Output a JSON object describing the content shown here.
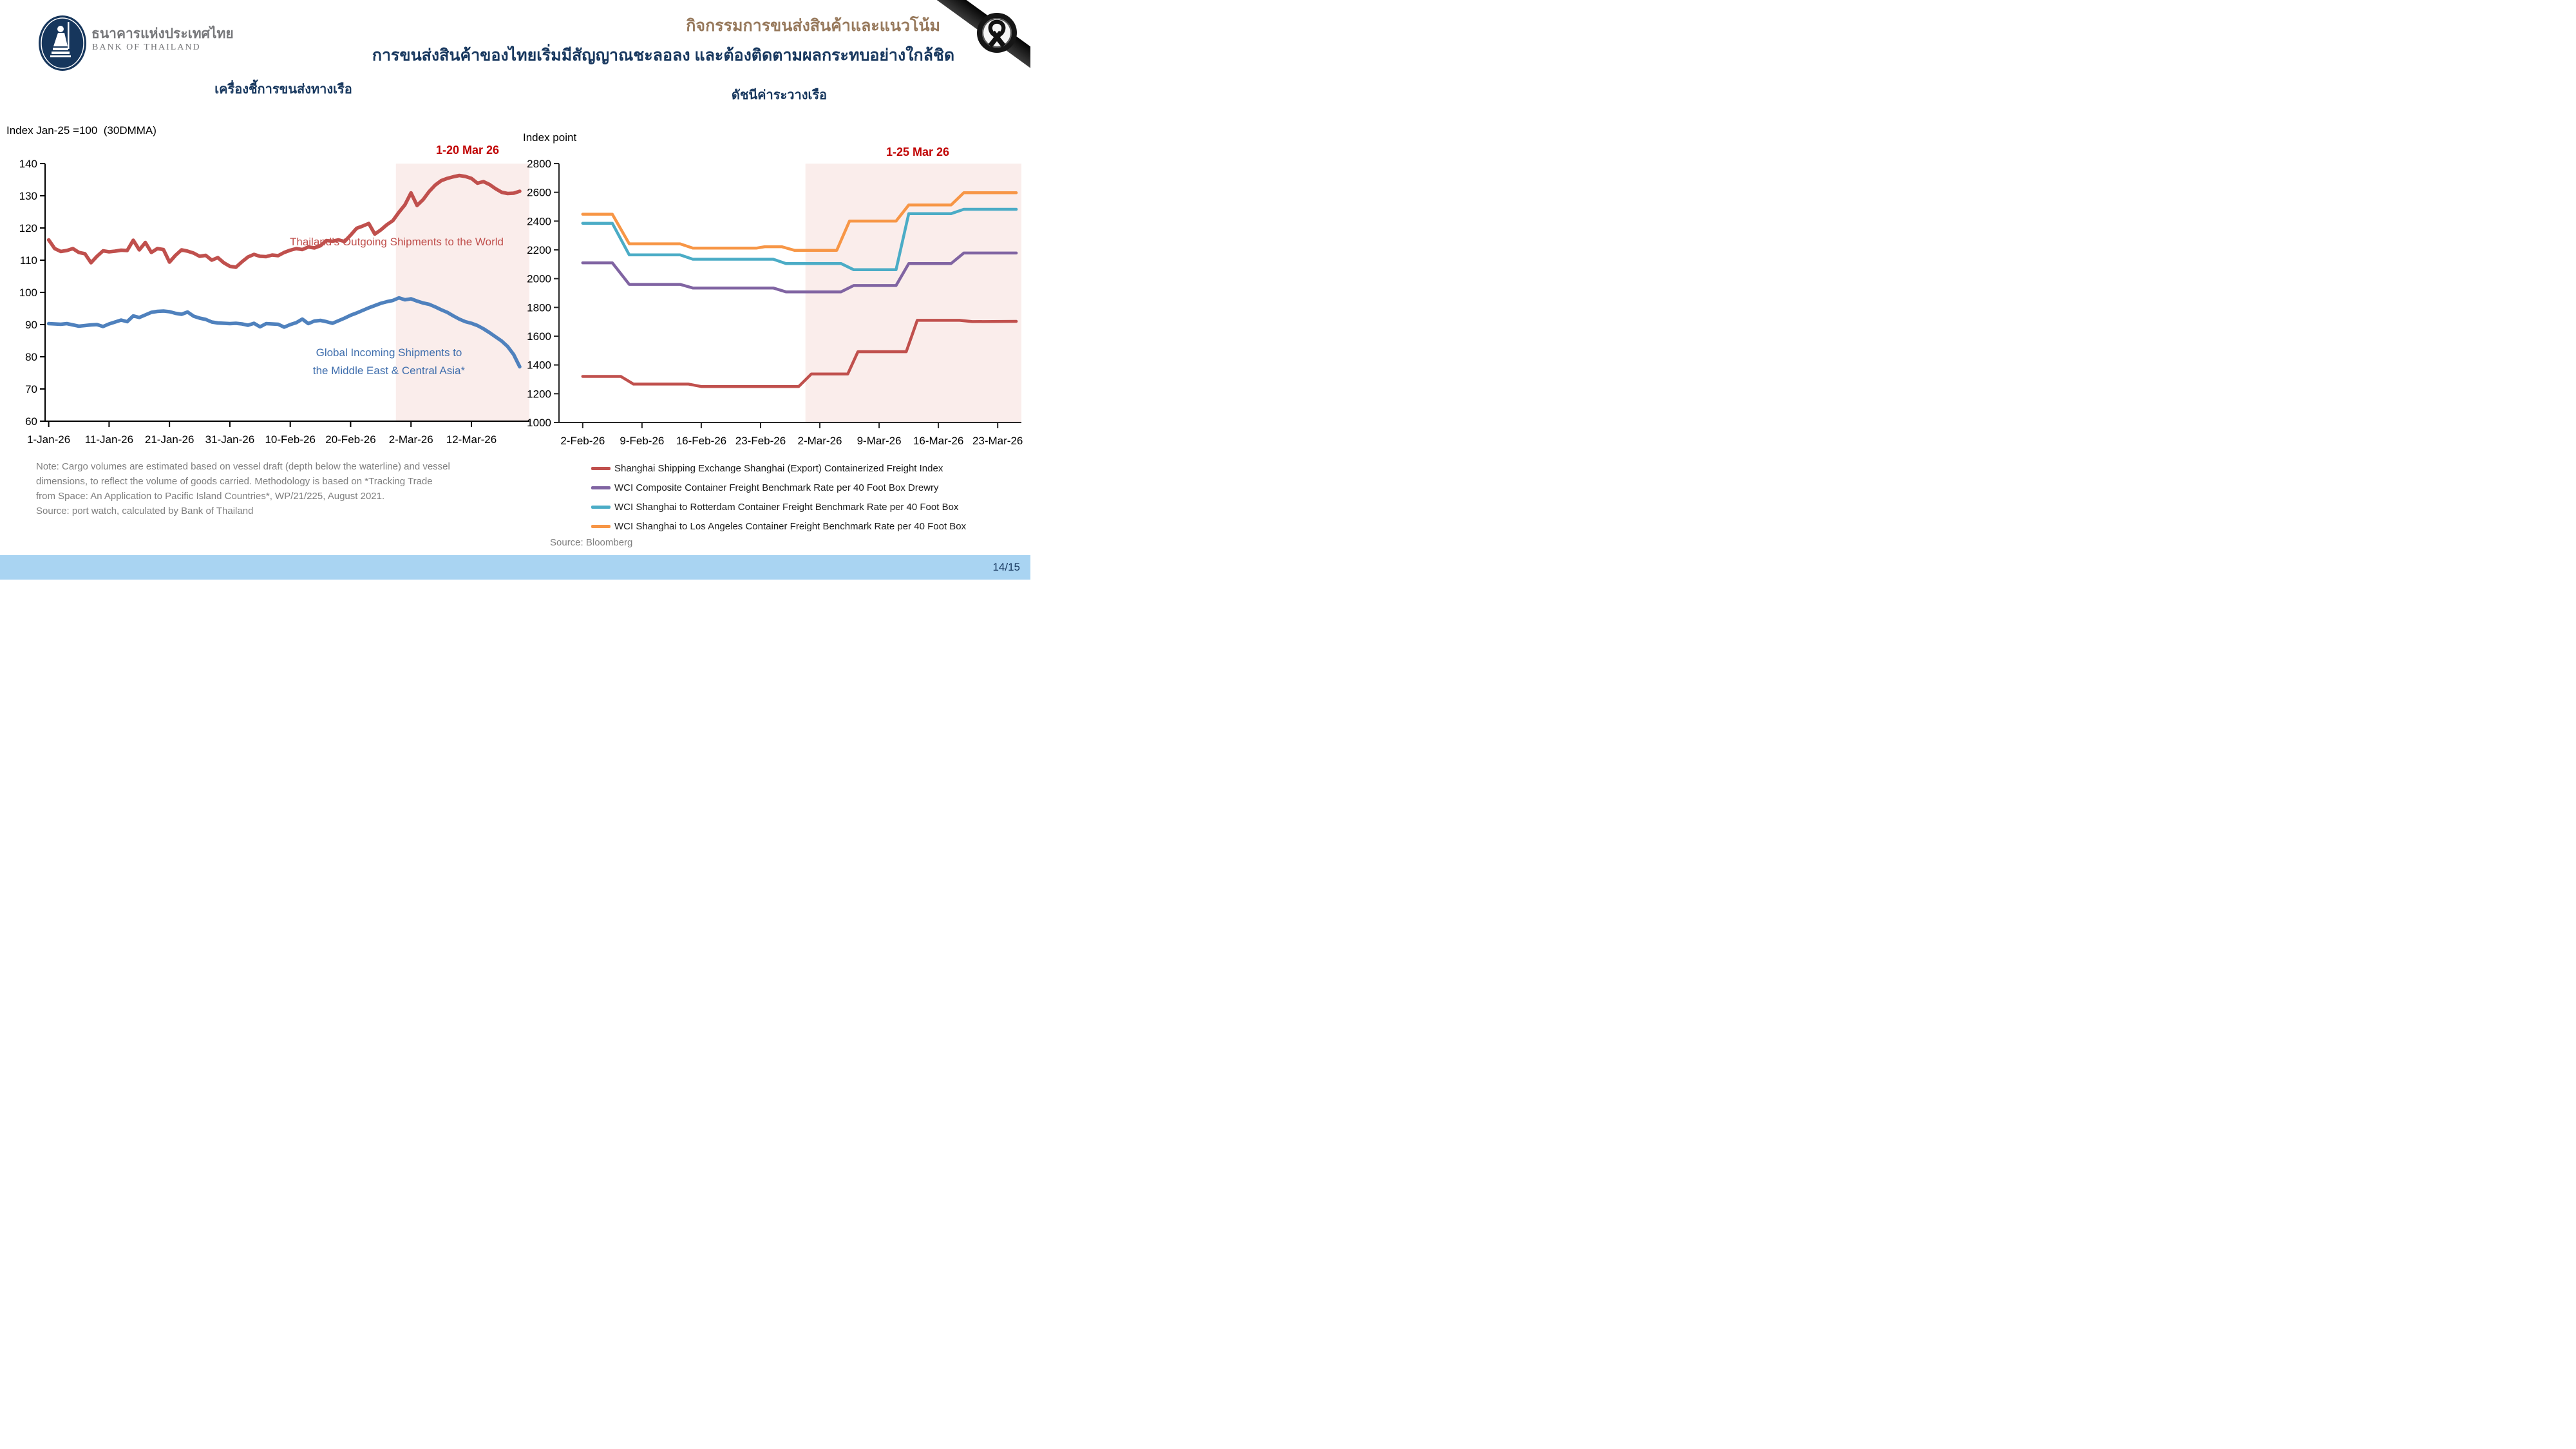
{
  "header": {
    "logo": {
      "org_thai": "ธนาคารแห่งประเทศไทย",
      "org_en": "BANK OF THAILAND",
      "emblem_icon": "bank-of-thailand-emblem"
    },
    "title_line1": "กิจกรรมการขนส่งสินค้าและแนวโน้ม",
    "title_line2": "การขนส่งสินค้าของไทยเริ่มมีสัญญาณชะลอลง และต้องติดตามผลกระทบอย่างใกล้ชิด",
    "mourning_ribbon_icon": "black-mourning-ribbon"
  },
  "left_panel": {
    "subtitle": "เครื่องชี้การขนส่งทางเรือ",
    "y_axis_label": "Index Jan-25 =100  (30DMMA)",
    "highlight_label": "1-20 Mar 26",
    "series_label_red": "Thailand’s Outgoing Shipments to the World",
    "series_label_blue_line1": "Global Incoming Shipments to",
    "series_label_blue_line2": "the Middle East & Central Asia*",
    "note_line1": "Note: Cargo volumes are estimated based on vessel draft (depth below the waterline) and vessel",
    "note_line2": "dimensions, to reflect the volume of goods carried. Methodology is based on *Tracking Trade",
    "note_line3": "from Space: An Application to Pacific Island Countries*, WP/21/225, August 2021.",
    "note_line4": "Source: port watch, calculated by Bank of Thailand"
  },
  "right_panel": {
    "subtitle": "ดัชนีค่าระวางเรือ",
    "y_axis_label": "Index point",
    "highlight_label": "1-25 Mar 26",
    "legend": [
      {
        "label": "Shanghai Shipping Exchange Shanghai (Export) Containerized Freight Index",
        "color": "#C0504D"
      },
      {
        "label": "WCI Composite Container Freight Benchmark Rate per 40 Foot Box Drewry",
        "color": "#8064A2"
      },
      {
        "label": "WCI Shanghai to Rotterdam Container Freight Benchmark Rate per 40 Foot Box",
        "color": "#4BACC6"
      },
      {
        "label": "WCI Shanghai to Los Angeles Container Freight Benchmark Rate per 40 Foot Box",
        "color": "#F79646"
      }
    ],
    "source": "Source: Bloomberg"
  },
  "footer": {
    "page_number": "14/15",
    "bar_color": "#A9D4F2"
  },
  "colors": {
    "title_brown": "#97795C",
    "title_navy": "#17375E",
    "annotation_red": "#C00000",
    "highlight_band": "#FAEDEB",
    "red_line": "#C0504D",
    "blue_line": "#4F81BD",
    "purple_line": "#8064A2",
    "teal_line": "#4BACC6",
    "orange_line": "#F79646",
    "note_gray": "#7F7F7F",
    "footer_blue": "#A9D4F2"
  },
  "chart_data": [
    {
      "type": "line",
      "title": "เครื่องชี้การขนส่งทางเรือ",
      "ylabel": "Index Jan-25 =100  (30DMMA)",
      "ylim": [
        60,
        140
      ],
      "ytick_step": 10,
      "grid": false,
      "x_axis_min_day": -0.6,
      "x_axis_max_day": 79.6,
      "x_tick_days": [
        0,
        10,
        20,
        30,
        40,
        50,
        60,
        70
      ],
      "x_tick_labels": [
        "1-Jan-26",
        "11-Jan-26",
        "21-Jan-26",
        "31-Jan-26",
        "10-Feb-26",
        "20-Feb-26",
        "2-Mar-26",
        "12-Mar-26"
      ],
      "highlight": {
        "label": "1-20 Mar 26",
        "start_day": 57.5,
        "end_day": 79.6,
        "color": "#FAEDEB"
      },
      "series": [
        {
          "name": "Thailand’s Outgoing Shipments to the World",
          "color": "#C0504D",
          "values": [
            116.3,
            113.6,
            112.7,
            113.0,
            113.6,
            112.4,
            112.0,
            109.2,
            111.2,
            112.9,
            112.6,
            112.8,
            113.1,
            113.0,
            116.2,
            113.2,
            115.5,
            112.4,
            113.6,
            113.3,
            109.4,
            111.5,
            113.2,
            112.8,
            112.2,
            111.2,
            111.5,
            110.0,
            110.8,
            109.2,
            108.1,
            107.8,
            109.5,
            111.0,
            111.8,
            111.2,
            111.1,
            111.6,
            111.4,
            112.4,
            113.1,
            113.6,
            113.3,
            114.1,
            113.8,
            114.5,
            116.1,
            115.9,
            116.3,
            115.8,
            117.8,
            119.9,
            120.6,
            121.4,
            118.1,
            119.4,
            121.0,
            122.3,
            124.9,
            127.2,
            130.9,
            127.0,
            128.8,
            131.3,
            133.3,
            134.7,
            135.4,
            135.9,
            136.3,
            136.0,
            135.4,
            133.9,
            134.4,
            133.5,
            132.2,
            131.1,
            130.7,
            130.8,
            131.4
          ]
        },
        {
          "name": "Global Incoming Shipments to the Middle East & Central Asia*",
          "color": "#4F81BD",
          "values": [
            90.3,
            90.2,
            90.1,
            90.3,
            89.9,
            89.5,
            89.7,
            89.9,
            90.0,
            89.4,
            90.2,
            90.8,
            91.4,
            90.9,
            92.7,
            92.2,
            93.0,
            93.8,
            94.1,
            94.2,
            94.0,
            93.5,
            93.2,
            93.9,
            92.6,
            92.0,
            91.6,
            90.8,
            90.5,
            90.4,
            90.3,
            90.4,
            90.2,
            89.8,
            90.4,
            89.3,
            90.3,
            90.2,
            90.1,
            89.2,
            90.0,
            90.6,
            91.7,
            90.3,
            91.1,
            91.3,
            90.9,
            90.4,
            91.2,
            92.0,
            92.9,
            93.6,
            94.4,
            95.2,
            95.9,
            96.6,
            97.1,
            97.5,
            98.3,
            97.7,
            98.0,
            97.3,
            96.7,
            96.3,
            95.5,
            94.6,
            93.8,
            92.7,
            91.7,
            90.9,
            90.4,
            89.7,
            88.7,
            87.5,
            86.2,
            84.9,
            83.2,
            80.7,
            76.9
          ]
        }
      ]
    },
    {
      "type": "line",
      "title": "ดัชนีค่าระวางเรือ",
      "ylabel": "Index point",
      "ylim": [
        1000,
        2800
      ],
      "ytick_step": 200,
      "grid": false,
      "x_axis_min_day": -2.8,
      "x_axis_max_day": 51.8,
      "x_tick_days": [
        0,
        7,
        14,
        21,
        28,
        35,
        42,
        49
      ],
      "x_tick_labels": [
        "2-Feb-26",
        "9-Feb-26",
        "16-Feb-26",
        "23-Feb-26",
        "2-Mar-26",
        "9-Mar-26",
        "16-Mar-26",
        "23-Mar-26"
      ],
      "highlight": {
        "label": "1-25 Mar 26",
        "start_day": 26.3,
        "end_day": 51.8,
        "color": "#FAEDEB"
      },
      "series": [
        {
          "name": "Shanghai Shipping Exchange Shanghai (Export) Containerized Freight Index",
          "color": "#C0504D",
          "points": [
            [
              0,
              1320
            ],
            [
              4.5,
              1320
            ],
            [
              6,
              1267
            ],
            [
              12.5,
              1267
            ],
            [
              14,
              1250
            ],
            [
              25.5,
              1250
            ],
            [
              27,
              1337
            ],
            [
              31.3,
              1337
            ],
            [
              32.5,
              1492
            ],
            [
              38.2,
              1492
            ],
            [
              39.5,
              1710
            ],
            [
              44.5,
              1710
            ],
            [
              46,
              1701
            ],
            [
              51.2,
              1703
            ]
          ]
        },
        {
          "name": "WCI Composite Container Freight Benchmark Rate per 40 Foot Box Drewry",
          "color": "#8064A2",
          "points": [
            [
              0,
              2110
            ],
            [
              3.5,
              2110
            ],
            [
              5.5,
              1960
            ],
            [
              11.5,
              1960
            ],
            [
              13,
              1935
            ],
            [
              22.5,
              1935
            ],
            [
              24,
              1908
            ],
            [
              30.5,
              1908
            ],
            [
              32,
              1952
            ],
            [
              37,
              1952
            ],
            [
              38.5,
              2105
            ],
            [
              43.5,
              2105
            ],
            [
              45,
              2178
            ],
            [
              51.2,
              2178
            ]
          ]
        },
        {
          "name": "WCI Shanghai to Rotterdam Container Freight Benchmark Rate per 40 Foot Box",
          "color": "#4BACC6",
          "points": [
            [
              0,
              2385
            ],
            [
              3.5,
              2385
            ],
            [
              5.5,
              2165
            ],
            [
              11.5,
              2165
            ],
            [
              13,
              2135
            ],
            [
              22.5,
              2135
            ],
            [
              24,
              2105
            ],
            [
              30.5,
              2105
            ],
            [
              32,
              2062
            ],
            [
              37,
              2062
            ],
            [
              38.5,
              2452
            ],
            [
              43.5,
              2452
            ],
            [
              45,
              2482
            ],
            [
              51.2,
              2482
            ]
          ]
        },
        {
          "name": "WCI Shanghai to Los Angeles Container Freight Benchmark Rate per 40 Foot Box",
          "color": "#F79646",
          "points": [
            [
              0,
              2448
            ],
            [
              3.5,
              2448
            ],
            [
              5.5,
              2242
            ],
            [
              11.5,
              2242
            ],
            [
              13,
              2212
            ],
            [
              20.5,
              2212
            ],
            [
              21.5,
              2222
            ],
            [
              23.5,
              2222
            ],
            [
              25,
              2197
            ],
            [
              30,
              2197
            ],
            [
              31.5,
              2400
            ],
            [
              37,
              2400
            ],
            [
              38.5,
              2512
            ],
            [
              43.5,
              2512
            ],
            [
              45,
              2597
            ],
            [
              51.2,
              2597
            ]
          ]
        }
      ]
    }
  ]
}
